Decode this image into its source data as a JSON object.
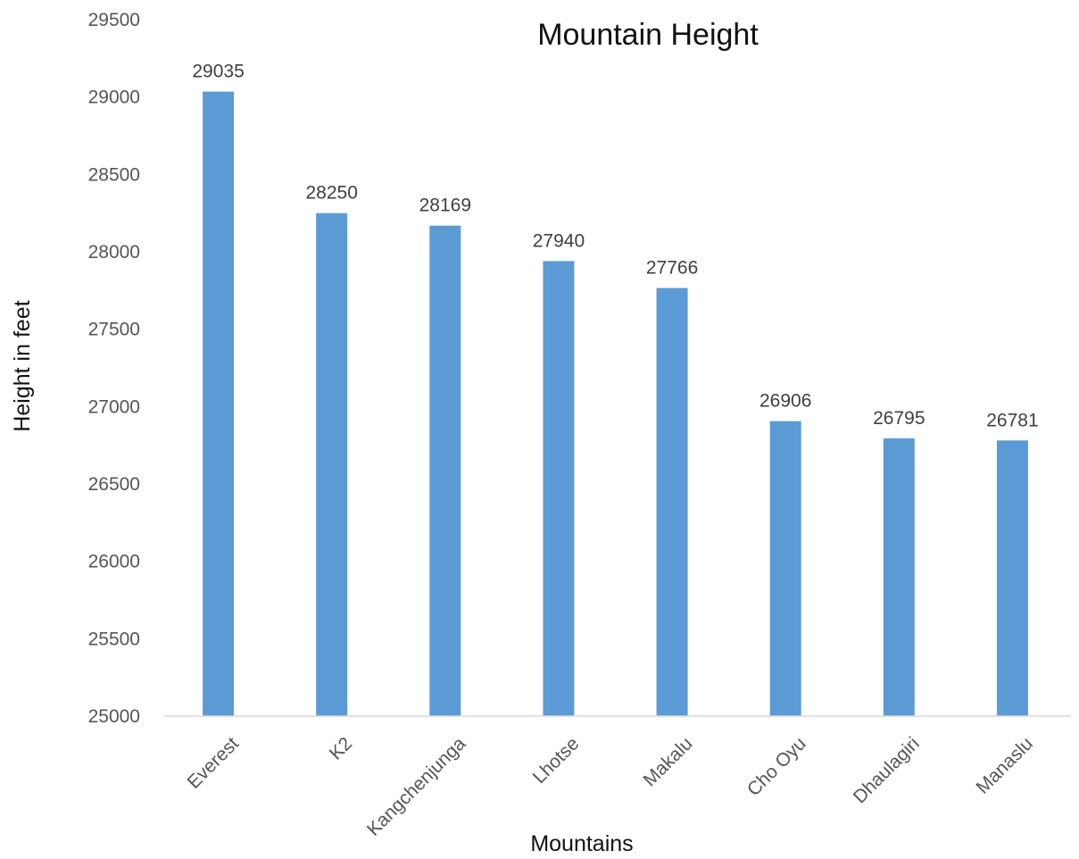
{
  "chart_data": {
    "type": "bar",
    "title": "Mountain Height",
    "xlabel": "Mountains",
    "ylabel": "Height in feet",
    "categories": [
      "Everest",
      "K2",
      "Kangchenjunga",
      "Lhotse",
      "Makalu",
      "Cho Oyu",
      "Dhaulagiri",
      "Manaslu"
    ],
    "values": [
      29035,
      28250,
      28169,
      27940,
      27766,
      26906,
      26795,
      26781
    ],
    "ylim": [
      25000,
      29500
    ],
    "yticks": [
      25000,
      25500,
      26000,
      26500,
      27000,
      27500,
      28000,
      28500,
      29000,
      29500
    ],
    "grid": false,
    "legend": "none",
    "bar_color": "#5B9BD5",
    "data_labels": true
  }
}
